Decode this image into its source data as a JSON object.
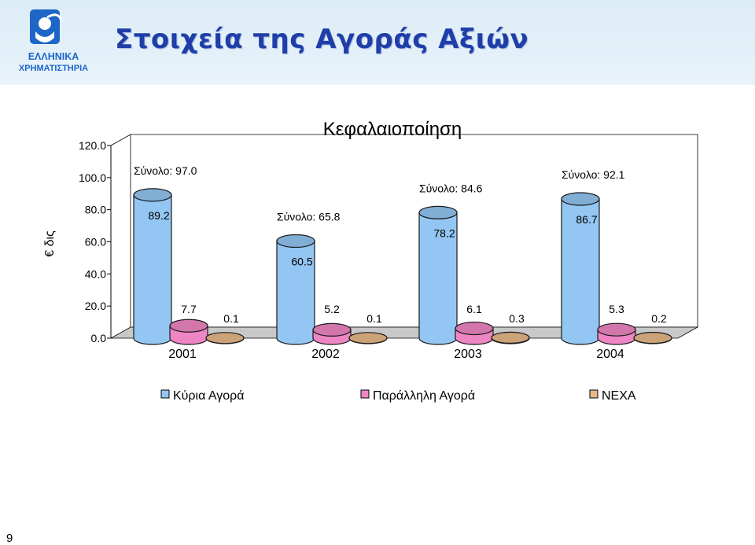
{
  "slide": {
    "title": "Στοιχεία της Αγοράς Αξιών",
    "page_number": "9",
    "logo_line1": "ΕΛΛΗΝΙΚΑ",
    "logo_line2": "ΧΡΗΜΑΤΙΣΤΗΡΙΑ"
  },
  "chart_data": {
    "type": "bar",
    "title": "Κεφαλαιοποίηση",
    "xlabel": "",
    "ylabel": "€ δις",
    "ylim": [
      0,
      120
    ],
    "yticks": [
      "0.0",
      "20.0",
      "40.0",
      "60.0",
      "80.0",
      "100.0",
      "120.0"
    ],
    "categories": [
      "2001",
      "2002",
      "2003",
      "2004"
    ],
    "series": [
      {
        "name": "Κύρια Αγορά",
        "values": [
          89.2,
          60.5,
          78.2,
          86.7
        ],
        "labels": [
          "89.2",
          "60.5",
          "78.2",
          "86.7"
        ],
        "color": "#93c6f2"
      },
      {
        "name": "Παράλληλη Αγορά",
        "values": [
          7.7,
          5.2,
          6.1,
          5.3
        ],
        "labels": [
          "7.7",
          "5.2",
          "6.1",
          "5.3"
        ],
        "color": "#ef86c4"
      },
      {
        "name": "ΝΕΧΑ",
        "values": [
          0.1,
          0.1,
          0.3,
          0.2
        ],
        "labels": [
          "0.1",
          "0.1",
          "0.3",
          "0.2"
        ],
        "color": "#e8b888"
      }
    ],
    "totals": [
      "Σύνολο: 97.0",
      "Σύνολο: 65.8",
      "Σύνολο: 84.6",
      "Σύνολο: 92.1"
    ],
    "legend_position": "bottom",
    "grid": false
  }
}
